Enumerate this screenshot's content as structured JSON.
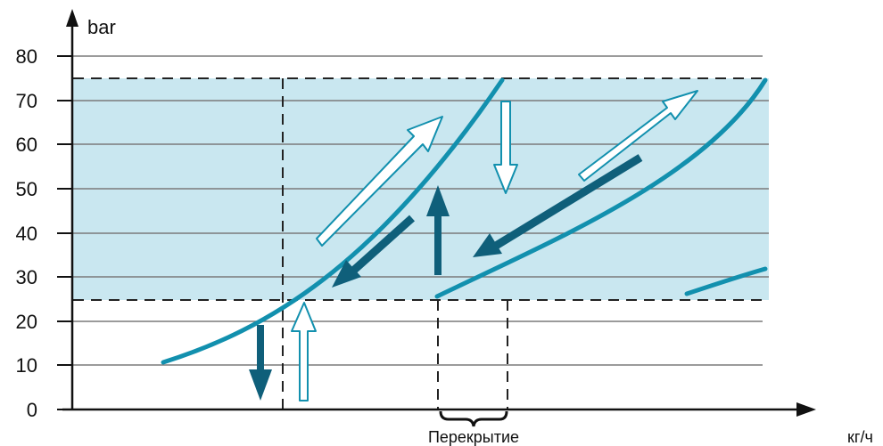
{
  "chart_data": {
    "type": "line",
    "ylabel": "bar",
    "xlabel": "кг/ч",
    "annotation": "Перекрытие",
    "yticks": [
      "0",
      "10",
      "20",
      "30",
      "40",
      "50",
      "60",
      "70",
      "80"
    ],
    "ylim": [
      0,
      85
    ],
    "band": {
      "from": 25,
      "to": 75
    },
    "grid": true,
    "colors": {
      "band": "#c9e7f0",
      "curve": "#1290ae",
      "arrow_solid": "#0f5f7a",
      "arrow_outline": "#1290ae",
      "axis": "#111111",
      "grid": "#7a7a7a"
    }
  }
}
